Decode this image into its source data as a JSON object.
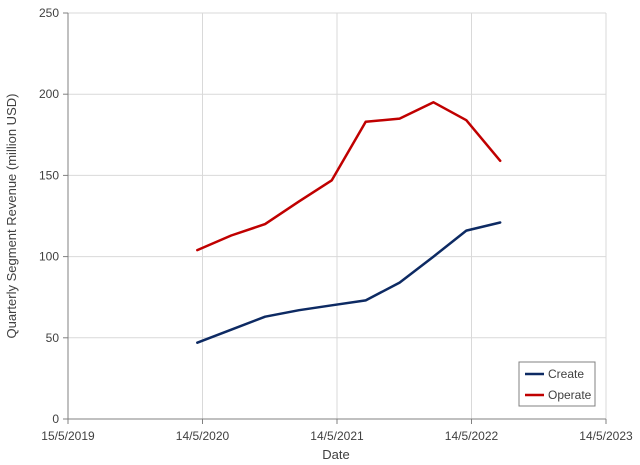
{
  "chart_data": {
    "type": "line",
    "title": "",
    "xlabel": "Date",
    "ylabel": "Quarterly Segment Revenue (million USD)",
    "ylim": [
      0,
      250
    ],
    "xlim": [
      "2019-05-15",
      "2023-05-14"
    ],
    "y_ticks": [
      0,
      50,
      100,
      150,
      200,
      250
    ],
    "x_ticks": [
      {
        "label": "15/5/2019",
        "date": "2019-05-15"
      },
      {
        "label": "14/5/2020",
        "date": "2020-05-14"
      },
      {
        "label": "14/5/2021",
        "date": "2021-05-14"
      },
      {
        "label": "14/5/2022",
        "date": "2022-05-14"
      },
      {
        "label": "14/5/2023",
        "date": "2023-05-14"
      }
    ],
    "grid": true,
    "legend_position": "bottom-right",
    "series": [
      {
        "name": "Create",
        "color": "#0d2a63",
        "points": [
          {
            "x": "2020-04-30",
            "y": 47
          },
          {
            "x": "2020-07-31",
            "y": 55
          },
          {
            "x": "2020-10-31",
            "y": 63
          },
          {
            "x": "2021-01-31",
            "y": 67
          },
          {
            "x": "2021-04-30",
            "y": 70
          },
          {
            "x": "2021-07-31",
            "y": 73
          },
          {
            "x": "2021-10-31",
            "y": 84
          },
          {
            "x": "2022-01-31",
            "y": 100
          },
          {
            "x": "2022-04-30",
            "y": 116
          },
          {
            "x": "2022-07-31",
            "y": 121
          }
        ]
      },
      {
        "name": "Operate",
        "color": "#c00000",
        "points": [
          {
            "x": "2020-04-30",
            "y": 104
          },
          {
            "x": "2020-07-31",
            "y": 113
          },
          {
            "x": "2020-10-31",
            "y": 120
          },
          {
            "x": "2021-01-31",
            "y": 134
          },
          {
            "x": "2021-04-30",
            "y": 147
          },
          {
            "x": "2021-07-31",
            "y": 183
          },
          {
            "x": "2021-10-31",
            "y": 185
          },
          {
            "x": "2022-01-31",
            "y": 195
          },
          {
            "x": "2022-04-30",
            "y": 184
          },
          {
            "x": "2022-07-31",
            "y": 159
          }
        ]
      }
    ]
  }
}
